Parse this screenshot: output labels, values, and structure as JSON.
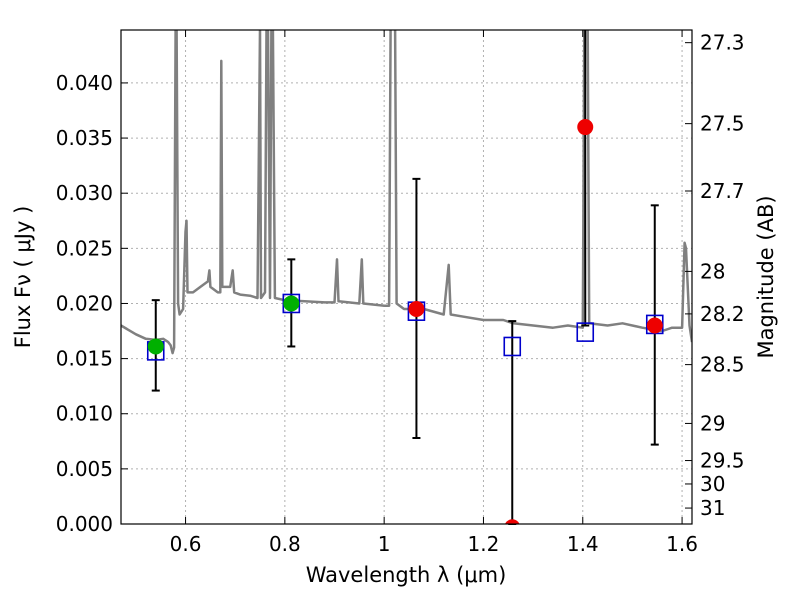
{
  "chart_data": {
    "type": "scatter",
    "xlabel": "Wavelength  λ (μm)",
    "ylabel": "Flux  Fν  ( μJy )",
    "ylabel_right": "Magnitude (AB)",
    "xlim": [
      0.47,
      1.62
    ],
    "ylim": [
      0.0,
      0.0448
    ],
    "grid": true,
    "x_ticks": [
      0.6,
      0.8,
      1.0,
      1.2,
      1.4,
      1.6
    ],
    "x_tick_labels": [
      "0.6",
      "0.8",
      "1",
      "1.2",
      "1.4",
      "1.6"
    ],
    "y_ticks": [
      0.0,
      0.005,
      0.01,
      0.015,
      0.02,
      0.025,
      0.03,
      0.035,
      0.04
    ],
    "y_tick_labels": [
      "0.000",
      "0.005",
      "0.010",
      "0.015",
      "0.020",
      "0.025",
      "0.030",
      "0.035",
      "0.040"
    ],
    "right_ticks": [
      27.3,
      27.5,
      27.7,
      28,
      28.2,
      28.5,
      29,
      29.5,
      30,
      31
    ],
    "right_tick_labels": [
      "27.3",
      "27.5",
      "27.7",
      "28",
      "28.2",
      "28.5",
      "29",
      "29.5",
      "30",
      "31"
    ],
    "colors": {
      "spectrum": "#808080",
      "model_box": "#0000cc",
      "detected": "#00b000",
      "observed": "#ee0000",
      "errorbar": "#000000",
      "grid": "#b0b0b0"
    },
    "spectrum": [
      [
        0.47,
        0.018
      ],
      [
        0.5,
        0.0172
      ],
      [
        0.52,
        0.0168
      ],
      [
        0.54,
        0.0167
      ],
      [
        0.555,
        0.0168
      ],
      [
        0.565,
        0.0165
      ],
      [
        0.57,
        0.0162
      ],
      [
        0.574,
        0.0155
      ],
      [
        0.577,
        0.016
      ],
      [
        0.58,
        0.045
      ],
      [
        0.582,
        0.045
      ],
      [
        0.585,
        0.02
      ],
      [
        0.588,
        0.019
      ],
      [
        0.595,
        0.0195
      ],
      [
        0.6,
        0.0265
      ],
      [
        0.602,
        0.0275
      ],
      [
        0.604,
        0.021
      ],
      [
        0.615,
        0.021
      ],
      [
        0.63,
        0.0215
      ],
      [
        0.645,
        0.022
      ],
      [
        0.648,
        0.023
      ],
      [
        0.65,
        0.0215
      ],
      [
        0.665,
        0.021
      ],
      [
        0.67,
        0.021
      ],
      [
        0.672,
        0.042
      ],
      [
        0.674,
        0.0215
      ],
      [
        0.69,
        0.0215
      ],
      [
        0.695,
        0.023
      ],
      [
        0.698,
        0.021
      ],
      [
        0.71,
        0.0208
      ],
      [
        0.73,
        0.0207
      ],
      [
        0.745,
        0.0205
      ],
      [
        0.75,
        0.045
      ],
      [
        0.752,
        0.0205
      ],
      [
        0.76,
        0.021
      ],
      [
        0.763,
        0.045
      ],
      [
        0.766,
        0.045
      ],
      [
        0.77,
        0.0205
      ],
      [
        0.773,
        0.045
      ],
      [
        0.776,
        0.045
      ],
      [
        0.78,
        0.0205
      ],
      [
        0.8,
        0.0203
      ],
      [
        0.84,
        0.0202
      ],
      [
        0.88,
        0.0201
      ],
      [
        0.9,
        0.0201
      ],
      [
        0.905,
        0.024
      ],
      [
        0.908,
        0.0202
      ],
      [
        0.95,
        0.02
      ],
      [
        0.955,
        0.024
      ],
      [
        0.958,
        0.02
      ],
      [
        1.0,
        0.0198
      ],
      [
        1.01,
        0.0198
      ],
      [
        1.013,
        0.045
      ],
      [
        1.022,
        0.045
      ],
      [
        1.025,
        0.02
      ],
      [
        1.04,
        0.0195
      ],
      [
        1.08,
        0.0195
      ],
      [
        1.12,
        0.019
      ],
      [
        1.13,
        0.0235
      ],
      [
        1.134,
        0.019
      ],
      [
        1.16,
        0.0188
      ],
      [
        1.2,
        0.0185
      ],
      [
        1.24,
        0.0185
      ],
      [
        1.26,
        0.0182
      ],
      [
        1.3,
        0.018
      ],
      [
        1.34,
        0.0178
      ],
      [
        1.37,
        0.018
      ],
      [
        1.4,
        0.0178
      ],
      [
        1.403,
        0.045
      ],
      [
        1.41,
        0.045
      ],
      [
        1.413,
        0.0182
      ],
      [
        1.45,
        0.018
      ],
      [
        1.48,
        0.0182
      ],
      [
        1.52,
        0.0178
      ],
      [
        1.56,
        0.0175
      ],
      [
        1.58,
        0.0178
      ],
      [
        1.6,
        0.0178
      ],
      [
        1.605,
        0.0255
      ],
      [
        1.608,
        0.025
      ],
      [
        1.615,
        0.018
      ],
      [
        1.62,
        0.0165
      ]
    ],
    "model_boxes": [
      {
        "x": 0.54,
        "y": 0.0157
      },
      {
        "x": 0.813,
        "y": 0.02
      },
      {
        "x": 1.065,
        "y": 0.0193
      },
      {
        "x": 1.258,
        "y": 0.0161
      },
      {
        "x": 1.405,
        "y": 0.0174
      },
      {
        "x": 1.545,
        "y": 0.0181
      }
    ],
    "detected_points": [
      {
        "x": 0.54,
        "y": 0.0161
      },
      {
        "x": 0.813,
        "y": 0.02
      }
    ],
    "observed_points": [
      {
        "x": 1.065,
        "y": 0.0195
      },
      {
        "x": 1.258,
        "y": -0.0003
      },
      {
        "x": 1.405,
        "y": 0.036
      },
      {
        "x": 1.545,
        "y": 0.018
      }
    ],
    "error_bars": [
      {
        "x": 0.54,
        "low": 0.0121,
        "high": 0.0203
      },
      {
        "x": 0.813,
        "low": 0.0161,
        "high": 0.024
      },
      {
        "x": 1.065,
        "low": 0.0078,
        "high": 0.0313
      },
      {
        "x": 1.258,
        "low": 0.0,
        "high": 0.0184
      },
      {
        "x": 1.405,
        "low": 0.018,
        "high": 0.0448
      },
      {
        "x": 1.545,
        "low": 0.0072,
        "high": 0.0289
      }
    ]
  }
}
